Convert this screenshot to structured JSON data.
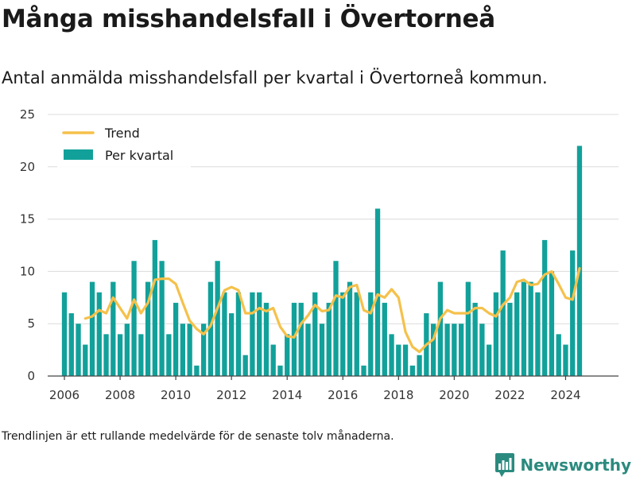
{
  "title": "Många misshandelsfall i Övertorneå",
  "subtitle": "Antal anmälda misshandelsfall per kvartal i Övertorneå kommun.",
  "footnote": "Trendlinjen är ett rullande medelvärde för de senaste tolv månaderna.",
  "brand": {
    "name": "Newsworthy",
    "icon": "bar-chart-logo-icon"
  },
  "colors": {
    "bars": "#12a19a",
    "trend": "#f5c14b",
    "grid": "#dcdcdc",
    "axis": "#444444"
  },
  "chart_data": {
    "type": "bar",
    "x_ticks": [
      "2006",
      "2008",
      "2010",
      "2012",
      "2014",
      "2016",
      "2018",
      "2020",
      "2022",
      "2024"
    ],
    "y_ticks": [
      "0",
      "5",
      "10",
      "15",
      "20",
      "25"
    ],
    "ylim": [
      0,
      25
    ],
    "xlim": [
      2005.4,
      2025.9
    ],
    "grid": true,
    "legend_position": "top-left",
    "series": [
      {
        "name": "Per kvartal",
        "type": "bar",
        "x_start": 2006.0,
        "step": 0.25,
        "values": [
          8,
          6,
          5,
          3,
          9,
          8,
          4,
          9,
          4,
          5,
          11,
          4,
          9,
          13,
          11,
          4,
          7,
          5,
          5,
          1,
          5,
          9,
          11,
          8,
          6,
          8,
          2,
          8,
          8,
          7,
          3,
          1,
          4,
          7,
          7,
          5,
          8,
          5,
          7,
          11,
          8,
          9,
          8,
          1,
          8,
          16,
          7,
          4,
          3,
          3,
          1,
          2,
          6,
          5,
          9,
          5,
          5,
          5,
          9,
          7,
          5,
          3,
          8,
          12,
          7,
          8,
          9,
          9,
          8,
          13,
          10,
          4,
          3,
          12,
          22
        ]
      },
      {
        "name": "Trend",
        "type": "line",
        "points": [
          [
            2006.75,
            5.5
          ],
          [
            2007.0,
            5.7
          ],
          [
            2007.25,
            6.3
          ],
          [
            2007.5,
            6.0
          ],
          [
            2007.75,
            7.5
          ],
          [
            2008.0,
            6.5
          ],
          [
            2008.25,
            5.5
          ],
          [
            2008.5,
            7.3
          ],
          [
            2008.75,
            6.0
          ],
          [
            2009.0,
            7.0
          ],
          [
            2009.25,
            9.2
          ],
          [
            2009.5,
            9.3
          ],
          [
            2009.75,
            9.3
          ],
          [
            2010.0,
            8.8
          ],
          [
            2010.25,
            7.0
          ],
          [
            2010.5,
            5.3
          ],
          [
            2010.75,
            4.5
          ],
          [
            2011.0,
            4.0
          ],
          [
            2011.25,
            4.8
          ],
          [
            2011.5,
            6.5
          ],
          [
            2011.75,
            8.2
          ],
          [
            2012.0,
            8.5
          ],
          [
            2012.25,
            8.2
          ],
          [
            2012.5,
            6.0
          ],
          [
            2012.75,
            6.0
          ],
          [
            2013.0,
            6.5
          ],
          [
            2013.25,
            6.2
          ],
          [
            2013.5,
            6.5
          ],
          [
            2013.75,
            4.7
          ],
          [
            2014.0,
            3.8
          ],
          [
            2014.25,
            3.7
          ],
          [
            2014.5,
            5.0
          ],
          [
            2014.75,
            5.8
          ],
          [
            2015.0,
            6.8
          ],
          [
            2015.25,
            6.2
          ],
          [
            2015.5,
            6.3
          ],
          [
            2015.75,
            7.7
          ],
          [
            2016.0,
            7.5
          ],
          [
            2016.25,
            8.5
          ],
          [
            2016.5,
            8.7
          ],
          [
            2016.75,
            6.3
          ],
          [
            2017.0,
            6.0
          ],
          [
            2017.25,
            7.8
          ],
          [
            2017.5,
            7.5
          ],
          [
            2017.75,
            8.3
          ],
          [
            2018.0,
            7.5
          ],
          [
            2018.25,
            4.2
          ],
          [
            2018.5,
            2.8
          ],
          [
            2018.75,
            2.3
          ],
          [
            2019.0,
            3.0
          ],
          [
            2019.25,
            3.5
          ],
          [
            2019.5,
            5.5
          ],
          [
            2019.75,
            6.3
          ],
          [
            2020.0,
            6.0
          ],
          [
            2020.25,
            6.0
          ],
          [
            2020.5,
            6.0
          ],
          [
            2020.75,
            6.5
          ],
          [
            2021.0,
            6.5
          ],
          [
            2021.25,
            6.0
          ],
          [
            2021.5,
            5.7
          ],
          [
            2021.75,
            6.8
          ],
          [
            2022.0,
            7.5
          ],
          [
            2022.25,
            9.0
          ],
          [
            2022.5,
            9.2
          ],
          [
            2022.75,
            8.7
          ],
          [
            2023.0,
            8.8
          ],
          [
            2023.25,
            9.7
          ],
          [
            2023.5,
            10.0
          ],
          [
            2023.75,
            8.8
          ],
          [
            2024.0,
            7.5
          ],
          [
            2024.25,
            7.3
          ],
          [
            2024.5,
            10.3
          ]
        ]
      }
    ]
  }
}
